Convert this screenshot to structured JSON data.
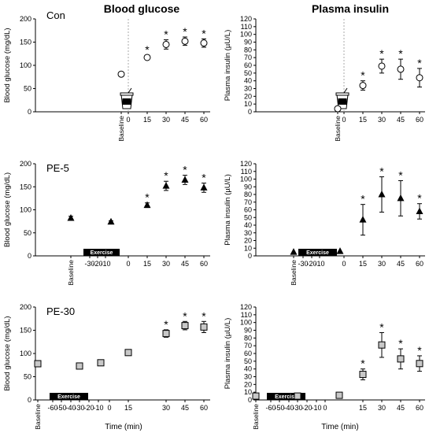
{
  "column_titles": [
    "Blood glucose",
    "Plasma insulin"
  ],
  "row_labels": [
    "Con",
    "PE-5",
    "PE-30"
  ],
  "x_axis_label": "Time (min)",
  "exercise_label": "Exercise",
  "significance_marker": "*",
  "chart_data": [
    {
      "type": "scatter",
      "panel": "Con - Blood glucose",
      "condition": "Con",
      "ylabel": "Blood glucose (mg/dL)",
      "ylim": [
        0,
        200
      ],
      "yticks": [
        0,
        50,
        100,
        150,
        200
      ],
      "xticks": [
        "Baseline",
        "0",
        "15",
        "30",
        "45",
        "60"
      ],
      "marker": "circle-open",
      "points": [
        {
          "x": "Baseline",
          "y": 81,
          "err": 0,
          "sig": false
        },
        {
          "x": 15,
          "y": 117,
          "err": 5,
          "sig": true
        },
        {
          "x": 30,
          "y": 145,
          "err": 10,
          "sig": true
        },
        {
          "x": 45,
          "y": 152,
          "err": 9,
          "sig": true
        },
        {
          "x": 60,
          "y": 148,
          "err": 9,
          "sig": true
        }
      ],
      "drink_at": 0
    },
    {
      "type": "scatter",
      "panel": "Con - Plasma insulin",
      "condition": "Con",
      "ylabel": "Plasma insulin (µU/L)",
      "ylim": [
        0,
        120
      ],
      "yticks": [
        0,
        10,
        20,
        30,
        40,
        50,
        60,
        70,
        80,
        90,
        100,
        110,
        120
      ],
      "xticks": [
        "Baseline",
        "0",
        "15",
        "30",
        "45",
        "60"
      ],
      "marker": "circle-open",
      "points": [
        {
          "x": "Baseline",
          "y": 4,
          "err": 0,
          "sig": false
        },
        {
          "x": 15,
          "y": 34,
          "err": 6,
          "sig": true
        },
        {
          "x": 30,
          "y": 59,
          "err": 9,
          "sig": true
        },
        {
          "x": 45,
          "y": 55,
          "err": 13,
          "sig": true
        },
        {
          "x": 60,
          "y": 44,
          "err": 12,
          "sig": true
        }
      ],
      "drink_at": 0
    },
    {
      "type": "scatter",
      "panel": "PE-5 - Blood glucose",
      "condition": "PE-5",
      "ylabel": "Blood glucose (mg/dL)",
      "ylim": [
        0,
        200
      ],
      "yticks": [
        0,
        50,
        100,
        150,
        200
      ],
      "xticks": [
        "Baseline",
        "-30",
        "-20",
        "-10",
        "0",
        "15",
        "30",
        "45",
        "60"
      ],
      "marker": "triangle",
      "points": [
        {
          "x": "Baseline",
          "y": 82,
          "err": 4,
          "sig": false
        },
        {
          "x": -5,
          "y": 74,
          "err": 2,
          "sig": false
        },
        {
          "x": 15,
          "y": 110,
          "err": 5,
          "sig": true
        },
        {
          "x": 30,
          "y": 152,
          "err": 10,
          "sig": true
        },
        {
          "x": 45,
          "y": 165,
          "err": 10,
          "sig": true
        },
        {
          "x": 60,
          "y": 148,
          "err": 10,
          "sig": true
        }
      ],
      "exercise_span": [
        -35,
        -5
      ]
    },
    {
      "type": "scatter",
      "panel": "PE-5 - Plasma insulin",
      "condition": "PE-5",
      "ylabel": "Plasma insulin (µU/L)",
      "ylim": [
        0,
        120
      ],
      "yticks": [
        0,
        10,
        20,
        30,
        40,
        50,
        60,
        70,
        80,
        90,
        100,
        110,
        120
      ],
      "xticks": [
        "Baseline",
        "-30",
        "-20",
        "-10",
        "0",
        "15",
        "30",
        "45",
        "60"
      ],
      "marker": "triangle",
      "points": [
        {
          "x": "Baseline",
          "y": 5,
          "err": 0,
          "sig": false
        },
        {
          "x": -5,
          "y": 6,
          "err": 0,
          "sig": false
        },
        {
          "x": 15,
          "y": 47,
          "err": 20,
          "sig": true
        },
        {
          "x": 30,
          "y": 80,
          "err": 23,
          "sig": true
        },
        {
          "x": 45,
          "y": 75,
          "err": 23,
          "sig": true
        },
        {
          "x": 60,
          "y": 58,
          "err": 10,
          "sig": true
        }
      ],
      "exercise_span": [
        -35,
        -5
      ]
    },
    {
      "type": "scatter",
      "panel": "PE-30 - Blood glucose",
      "condition": "PE-30",
      "ylabel": "Blood glucose (mg/dL)",
      "ylim": [
        0,
        200
      ],
      "yticks": [
        0,
        50,
        100,
        150,
        200
      ],
      "xticks": [
        "Baseline",
        "-60",
        "-50",
        "-40",
        "-30",
        "-20",
        "-10",
        "0",
        "15",
        "30",
        "45",
        "60"
      ],
      "marker": "square",
      "points": [
        {
          "x": "Baseline",
          "y": 78,
          "err": 0,
          "sig": false
        },
        {
          "x": -30,
          "y": 73,
          "err": 0,
          "sig": false
        },
        {
          "x": -5,
          "y": 80,
          "err": 0,
          "sig": false
        },
        {
          "x": 15,
          "y": 102,
          "err": 0,
          "sig": false
        },
        {
          "x": 30,
          "y": 143,
          "err": 8,
          "sig": true
        },
        {
          "x": 45,
          "y": 160,
          "err": 9,
          "sig": true
        },
        {
          "x": 60,
          "y": 157,
          "err": 12,
          "sig": true
        }
      ],
      "exercise_span": [
        -65,
        -35
      ]
    },
    {
      "type": "scatter",
      "panel": "PE-30 - Plasma insulin",
      "condition": "PE-30",
      "ylabel": "Plasma insulin (µU/L)",
      "ylim": [
        0,
        120
      ],
      "yticks": [
        0,
        10,
        20,
        30,
        40,
        50,
        60,
        70,
        80,
        90,
        100,
        110,
        120
      ],
      "xticks": [
        "Baseline",
        "-60",
        "-50",
        "-40",
        "-30",
        "-20",
        "-10",
        "0",
        "15",
        "30",
        "45",
        "60"
      ],
      "marker": "square",
      "points": [
        {
          "x": "Baseline",
          "y": 5,
          "err": 0,
          "sig": false
        },
        {
          "x": -30,
          "y": 5,
          "err": 0,
          "sig": false
        },
        {
          "x": -5,
          "y": 6,
          "err": 0,
          "sig": false
        },
        {
          "x": 15,
          "y": 33,
          "err": 7,
          "sig": true
        },
        {
          "x": 30,
          "y": 71,
          "err": 16,
          "sig": true
        },
        {
          "x": 45,
          "y": 53,
          "err": 13,
          "sig": true
        },
        {
          "x": 60,
          "y": 47,
          "err": 10,
          "sig": true
        }
      ],
      "exercise_span": [
        -65,
        -35
      ]
    }
  ]
}
